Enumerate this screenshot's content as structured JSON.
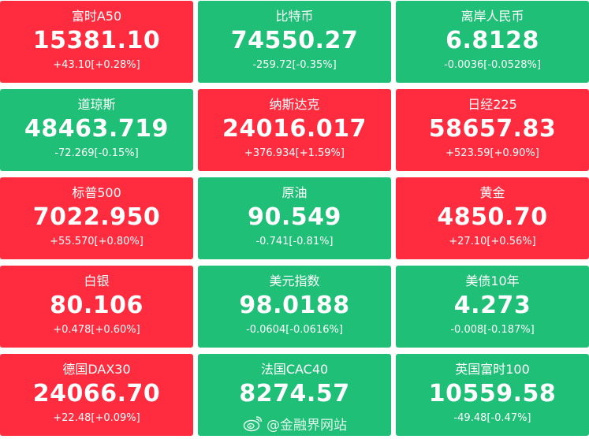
{
  "colors": {
    "up": "#fe2c3e",
    "down": "#1fbf77",
    "text": "#ffffff"
  },
  "tiles": [
    {
      "name": "富时A50",
      "price": "15381.10",
      "change": "+43.10[+0.28%]",
      "trend": "up"
    },
    {
      "name": "比特币",
      "price": "74550.27",
      "change": "-259.72[-0.35%]",
      "trend": "down"
    },
    {
      "name": "离岸人民币",
      "price": "6.8128",
      "change": "-0.0036[-0.0528%]",
      "trend": "down"
    },
    {
      "name": "道琼斯",
      "price": "48463.719",
      "change": "-72.269[-0.15%]",
      "trend": "down"
    },
    {
      "name": "纳斯达克",
      "price": "24016.017",
      "change": "+376.934[+1.59%]",
      "trend": "up"
    },
    {
      "name": "日经225",
      "price": "58657.83",
      "change": "+523.59[+0.90%]",
      "trend": "up"
    },
    {
      "name": "标普500",
      "price": "7022.950",
      "change": "+55.570[+0.80%]",
      "trend": "up"
    },
    {
      "name": "原油",
      "price": "90.549",
      "change": "-0.741[-0.81%]",
      "trend": "down"
    },
    {
      "name": "黄金",
      "price": "4850.70",
      "change": "+27.10[+0.56%]",
      "trend": "up"
    },
    {
      "name": "白银",
      "price": "80.106",
      "change": "+0.478[+0.60%]",
      "trend": "up"
    },
    {
      "name": "美元指数",
      "price": "98.0188",
      "change": "-0.0604[-0.0616%]",
      "trend": "down"
    },
    {
      "name": "美债10年",
      "price": "4.273",
      "change": "-0.008[-0.187%]",
      "trend": "down"
    },
    {
      "name": "德国DAX30",
      "price": "24066.70",
      "change": "+22.48[+0.09%]",
      "trend": "up"
    },
    {
      "name": "法国CAC40",
      "price": "8274.57",
      "change": "",
      "trend": "down"
    },
    {
      "name": "英国富时100",
      "price": "10559.58",
      "change": "-49.48[-0.47%]",
      "trend": "down"
    }
  ],
  "watermark": {
    "text": "@金融界网站",
    "icon": "weibo-icon"
  }
}
